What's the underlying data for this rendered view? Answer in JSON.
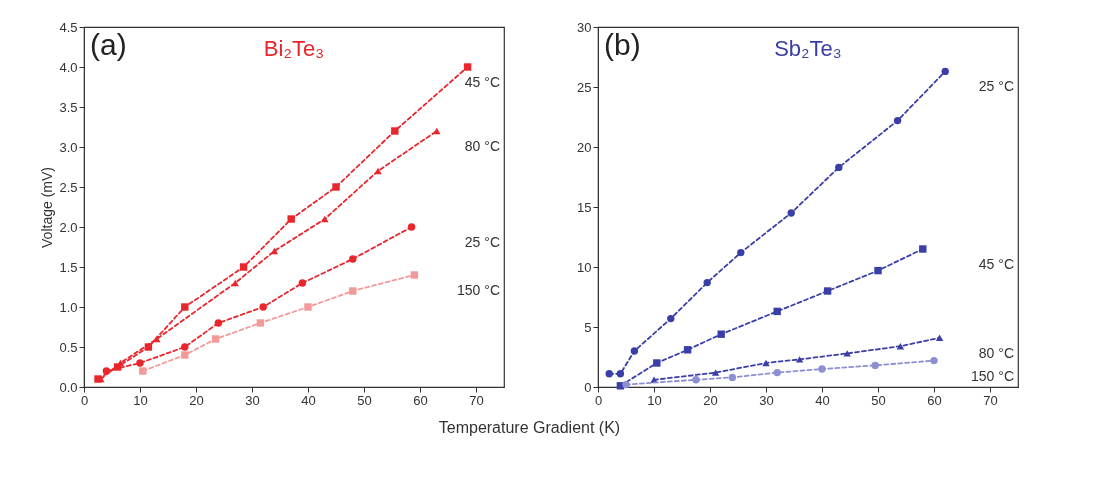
{
  "chart_data": [
    {
      "type": "line",
      "title": "Bi₂Te₃",
      "ylabel": "Voltage (mV)",
      "xlabel": "Temperature Gradient (K)",
      "annotations": [
        "(a)"
      ],
      "grid": false,
      "line_style": "dashed",
      "xlim": [
        0,
        75
      ],
      "xticks": [
        0,
        10,
        20,
        30,
        40,
        50,
        60,
        70
      ],
      "ylim": [
        0,
        4.5
      ],
      "yticks": [
        {
          "value": 0,
          "label": "0.0"
        },
        {
          "value": 0.5,
          "label": "0.5"
        },
        {
          "value": 1,
          "label": "1.0"
        },
        {
          "value": 1.5,
          "label": "1.5"
        },
        {
          "value": 2,
          "label": "2.0"
        },
        {
          "value": 2.5,
          "label": "2.5"
        },
        {
          "value": 3,
          "label": "3.0"
        },
        {
          "value": 3.5,
          "label": "3.5"
        },
        {
          "value": 4,
          "label": "4.0"
        },
        {
          "value": 4.5,
          "label": "4.5"
        }
      ],
      "series": [
        {
          "name": "45 °C",
          "color": "#e8262b",
          "marker": "square",
          "x": [
            2.5,
            6,
            11.5,
            18,
            28.5,
            37,
            45,
            55.5,
            68.5
          ],
          "values": [
            0.1,
            0.25,
            0.5,
            1.0,
            1.5,
            2.1,
            2.5,
            3.2,
            4.0
          ]
        },
        {
          "name": "80 °C",
          "color": "#e8262b",
          "marker": "triangle",
          "x": [
            3,
            6.5,
            13,
            27,
            34,
            43,
            52.5,
            63
          ],
          "values": [
            0.1,
            0.3,
            0.6,
            1.3,
            1.7,
            2.1,
            2.7,
            3.2
          ]
        },
        {
          "name": "25 °C",
          "color": "#e8262b",
          "marker": "circle",
          "x": [
            4,
            10,
            18,
            24,
            32,
            39,
            48,
            58.5
          ],
          "values": [
            0.2,
            0.3,
            0.5,
            0.8,
            1.0,
            1.3,
            1.6,
            2.0
          ]
        },
        {
          "name": "150 °C",
          "color": "#f29a9a",
          "marker": "square",
          "x": [
            10.5,
            18,
            23.5,
            31.5,
            40,
            48,
            59
          ],
          "values": [
            0.2,
            0.4,
            0.6,
            0.8,
            1.0,
            1.2,
            1.4
          ]
        }
      ]
    },
    {
      "type": "line",
      "title": "Sb₂Te₃",
      "annotations": [
        "(b)"
      ],
      "grid": false,
      "line_style": "dashed",
      "xlim": [
        0,
        75
      ],
      "xticks": [
        0,
        10,
        20,
        30,
        40,
        50,
        60,
        70
      ],
      "ylim": [
        0,
        30
      ],
      "yticks": [
        0,
        5,
        10,
        15,
        20,
        25,
        30
      ],
      "series": [
        {
          "name": "25 °C",
          "color": "#3a3fa8",
          "marker": "circle",
          "x": [
            2,
            4,
            6.5,
            13,
            19.5,
            25.5,
            34.5,
            43,
            53.5,
            62
          ],
          "values": [
            1.1,
            1.1,
            3.0,
            5.7,
            8.7,
            11.2,
            14.5,
            18.3,
            22.2,
            26.3
          ]
        },
        {
          "name": "45 °C",
          "color": "#3a3fa8",
          "marker": "square",
          "x": [
            4,
            10.5,
            16,
            22,
            32,
            41,
            50,
            58
          ],
          "values": [
            0.1,
            2.0,
            3.1,
            4.4,
            6.3,
            8.0,
            9.7,
            11.5
          ]
        },
        {
          "name": "80 °C",
          "color": "#3a3fa8",
          "marker": "triangle",
          "x": [
            10,
            21,
            30,
            36,
            44.5,
            54,
            61
          ],
          "values": [
            0.6,
            1.2,
            2.0,
            2.3,
            2.8,
            3.4,
            4.1
          ]
        },
        {
          "name": "150 °C",
          "color": "#8c8fd0",
          "marker": "circle",
          "x": [
            5,
            17.5,
            24,
            32,
            40,
            49.5,
            60
          ],
          "values": [
            0.2,
            0.6,
            0.8,
            1.2,
            1.5,
            1.8,
            2.2
          ]
        }
      ]
    }
  ]
}
